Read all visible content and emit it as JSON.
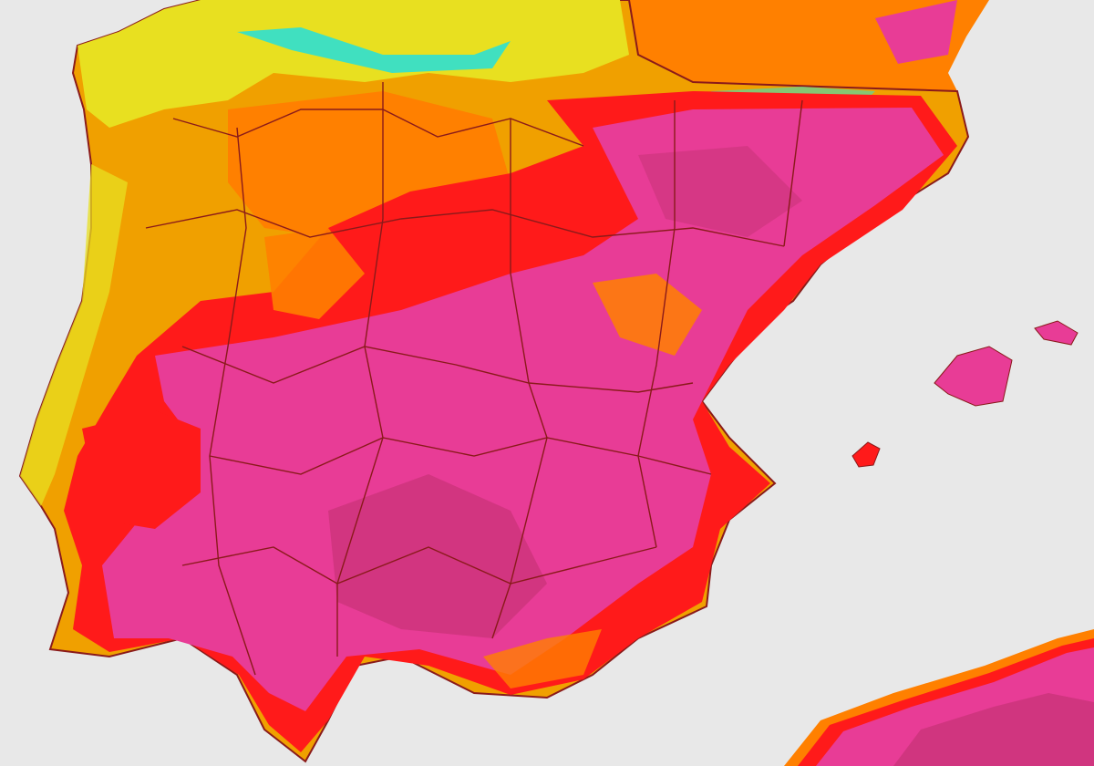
{
  "map": {
    "colors": {
      "sea": "#e8e8e8",
      "cool": "#e8e020",
      "mild": "#f0a000",
      "warm": "#ff8000",
      "hot": "#ff1a1a",
      "very_hot": "#e83c96",
      "extreme": "#c03070",
      "border": "#8a1a1a",
      "snow_peaks": "#40e0c0"
    }
  }
}
